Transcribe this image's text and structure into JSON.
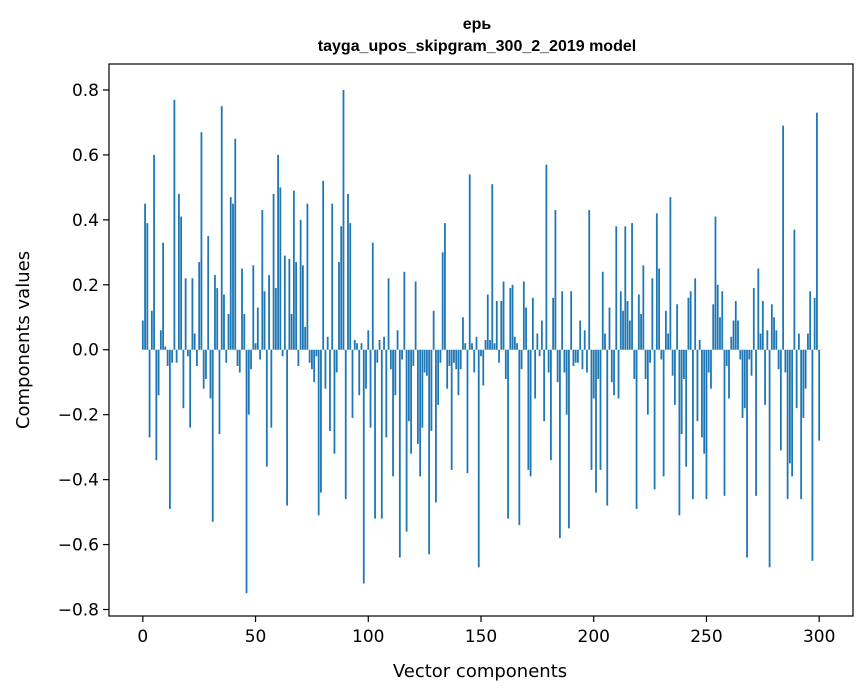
{
  "chart_data": {
    "type": "bar",
    "title": "ерь",
    "subtitle": "tayga_upos_skipgram_300_2_2019 model",
    "xlabel": "Vector components",
    "ylabel": "Components values",
    "xlim": [
      -15,
      315
    ],
    "ylim": [
      -0.82,
      0.88
    ],
    "xticks": [
      0,
      50,
      100,
      150,
      200,
      250,
      300
    ],
    "xtick_labels": [
      "0",
      "50",
      "100",
      "150",
      "200",
      "250",
      "300"
    ],
    "yticks": [
      -0.8,
      -0.6,
      -0.4,
      -0.2,
      0.0,
      0.2,
      0.4,
      0.6,
      0.8
    ],
    "ytick_labels": [
      "−0.8",
      "−0.6",
      "−0.4",
      "−0.2",
      "0.0",
      "0.2",
      "0.4",
      "0.6",
      "0.8"
    ],
    "bar_color": "#1f77b4",
    "grid": false,
    "values": [
      0.09,
      0.45,
      0.39,
      -0.27,
      0.12,
      0.6,
      -0.34,
      -0.14,
      0.06,
      0.33,
      0.01,
      -0.05,
      -0.49,
      -0.04,
      0.77,
      -0.04,
      0.48,
      0.41,
      -0.18,
      0.22,
      -0.02,
      -0.24,
      0.22,
      0.05,
      -0.05,
      0.27,
      0.67,
      -0.12,
      -0.09,
      0.35,
      -0.15,
      -0.53,
      0.23,
      0.19,
      -0.26,
      0.75,
      0.17,
      -0.04,
      0.11,
      0.47,
      0.45,
      0.65,
      -0.05,
      -0.07,
      0.25,
      0.11,
      -0.75,
      -0.2,
      -0.06,
      0.26,
      0.02,
      0.13,
      -0.03,
      0.43,
      0.18,
      -0.36,
      0.23,
      -0.24,
      0.48,
      0.19,
      0.6,
      0.5,
      -0.02,
      0.29,
      -0.48,
      0.28,
      0.11,
      0.49,
      0.27,
      -0.05,
      0.4,
      0.26,
      0.07,
      0.45,
      -0.04,
      -0.06,
      -0.1,
      -0.02,
      -0.51,
      -0.44,
      0.52,
      -0.12,
      0.04,
      -0.25,
      0.45,
      -0.32,
      -0.07,
      0.27,
      0.38,
      0.8,
      -0.46,
      0.48,
      0.39,
      -0.21,
      0.03,
      0.02,
      -0.14,
      0.02,
      -0.72,
      -0.12,
      0.06,
      -0.24,
      0.33,
      -0.52,
      -0.04,
      0.03,
      -0.52,
      0.04,
      -0.27,
      0.22,
      -0.06,
      -0.39,
      -0.14,
      0.06,
      -0.64,
      -0.03,
      0.24,
      -0.56,
      -0.22,
      -0.32,
      -0.05,
      0.21,
      -0.29,
      -0.39,
      -0.24,
      -0.07,
      -0.08,
      -0.63,
      -0.25,
      0.12,
      -0.47,
      -0.17,
      -0.04,
      0.3,
      0.39,
      -0.12,
      -0.05,
      -0.37,
      -0.04,
      -0.06,
      -0.14,
      -0.06,
      0.1,
      0.02,
      -0.38,
      0.54,
      0.02,
      -0.07,
      0.04,
      -0.67,
      -0.02,
      -0.11,
      0.03,
      0.17,
      0.03,
      0.51,
      0.02,
      0.15,
      -0.04,
      0.15,
      0.21,
      -0.09,
      -0.52,
      0.19,
      0.2,
      0.04,
      0.02,
      -0.54,
      -0.06,
      0.21,
      0.13,
      -0.37,
      -0.39,
      0.16,
      -0.15,
      0.05,
      -0.02,
      0.09,
      -0.22,
      0.57,
      -0.07,
      -0.34,
      0.16,
      0.43,
      -0.1,
      -0.58,
      0.18,
      -0.07,
      -0.2,
      -0.55,
      0.18,
      -0.05,
      -0.04,
      -0.04,
      0.09,
      -0.06,
      0.06,
      -0.07,
      0.43,
      -0.37,
      -0.15,
      -0.44,
      -0.09,
      -0.37,
      0.24,
      0.05,
      -0.48,
      0.13,
      -0.1,
      -0.14,
      0.38,
      -0.15,
      0.18,
      0.12,
      0.38,
      0.15,
      0.09,
      0.39,
      -0.09,
      -0.49,
      0.17,
      0.11,
      0.26,
      -0.09,
      -0.2,
      -0.04,
      0.22,
      -0.43,
      0.42,
      0.25,
      -0.03,
      -0.39,
      0.12,
      0.05,
      0.47,
      -0.08,
      -0.17,
      0.14,
      -0.51,
      -0.26,
      -0.09,
      -0.36,
      0.16,
      0.18,
      -0.46,
      0.22,
      -0.22,
      0.03,
      -0.27,
      -0.32,
      -0.46,
      -0.07,
      -0.12,
      0.14,
      0.41,
      0.2,
      0.1,
      0.18,
      -0.45,
      -0.05,
      -0.15,
      0.04,
      0.09,
      0.15,
      0.09,
      -0.03,
      -0.21,
      -0.18,
      -0.64,
      -0.03,
      -0.08,
      0.19,
      -0.45,
      0.25,
      0.05,
      0.15,
      -0.17,
      0.06,
      -0.67,
      0.14,
      0.1,
      0.06,
      -0.06,
      -0.31,
      0.69,
      -0.07,
      -0.46,
      -0.35,
      -0.39,
      0.37,
      -0.18,
      0.05,
      -0.46,
      -0.21,
      -0.12,
      0.05,
      0.18,
      -0.65,
      0.16,
      0.73,
      -0.28,
      0.0
    ]
  }
}
